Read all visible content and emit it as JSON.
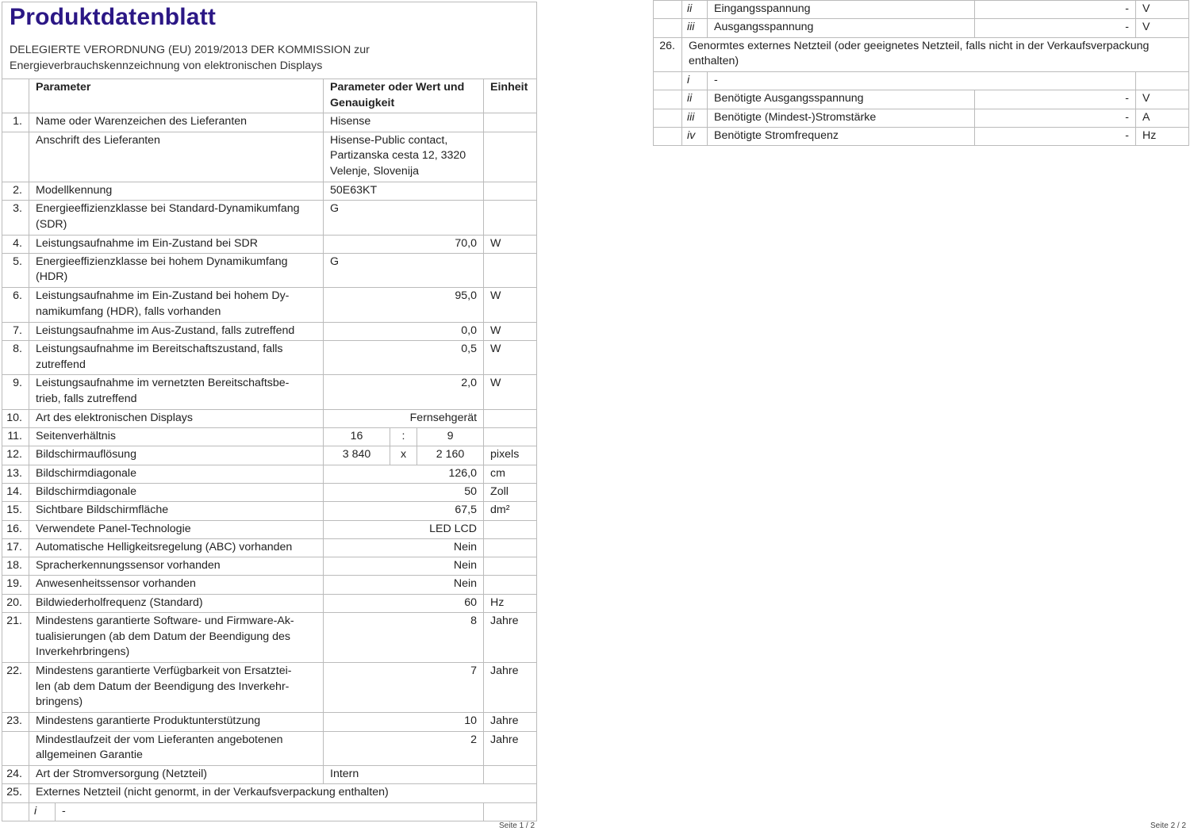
{
  "title": "Produktdatenblatt",
  "subtitle": "DELEGIERTE VERORDNUNG (EU) 2019/2013 DER KOMMISSION zur\nEnergieverbrauchskennzeichnung von elektronischen Displays",
  "title_color": "#2b1785",
  "left_table": {
    "header": {
      "param": "Parameter",
      "value": "Parameter oder Wert und\nGenauigkeit",
      "unit": "Einheit"
    },
    "rows": [
      {
        "num": "1.",
        "param": "Name oder Warenzeichen des Lieferanten",
        "value": "Hisense",
        "unit": ""
      },
      {
        "num": "",
        "param": "Anschrift des Lieferanten",
        "value": "Hisense-Public contact,\nPartizanska cesta 12, 3320\nVelenje, Slovenija",
        "unit": ""
      },
      {
        "num": "2.",
        "param": "Modellkennung",
        "value": "50E63KT",
        "unit": ""
      },
      {
        "num": "3.",
        "param": "Energieeffizienzklasse bei Standard-Dynamikumfang\n(SDR)",
        "value": "G",
        "unit": ""
      },
      {
        "num": "4.",
        "param": "Leistungsaufnahme im Ein-Zustand bei SDR",
        "value": "70,0",
        "unit": "W"
      },
      {
        "num": "5.",
        "param": "Energieeffizienzklasse bei hohem Dynamikumfang\n(HDR)",
        "value": "G",
        "unit": ""
      },
      {
        "num": "6.",
        "param": "Leistungsaufnahme im Ein-Zustand bei hohem Dy-\nnamikumfang (HDR), falls vorhanden",
        "value": "95,0",
        "unit": "W"
      },
      {
        "num": "7.",
        "param": "Leistungsaufnahme im Aus-Zustand, falls zutreffend",
        "value": "0,0",
        "unit": "W"
      },
      {
        "num": "8.",
        "param": "Leistungsaufnahme im Bereitschaftszustand, falls\nzutreffend",
        "value": "0,5",
        "unit": "W"
      },
      {
        "num": "9.",
        "param": "Leistungsaufnahme im vernetzten Bereitschaftsbe-\ntrieb, falls zutreffend",
        "value": "2,0",
        "unit": "W"
      },
      {
        "num": "10.",
        "param": "Art des elektronischen Displays",
        "value": "Fernsehgerät",
        "unit": ""
      },
      {
        "num": "11.",
        "param": "Seitenverhältnis",
        "value_parts": [
          "16",
          ":",
          "9"
        ],
        "unit": ""
      },
      {
        "num": "12.",
        "param": "Bildschirmauflösung",
        "value_parts": [
          "3 840",
          "x",
          "2 160"
        ],
        "unit": "pixels"
      },
      {
        "num": "13.",
        "param": "Bildschirmdiagonale",
        "value": "126,0",
        "unit": "cm"
      },
      {
        "num": "14.",
        "param": "Bildschirmdiagonale",
        "value": "50",
        "unit": "Zoll"
      },
      {
        "num": "15.",
        "param": "Sichtbare Bildschirmfläche",
        "value": "67,5",
        "unit": "dm²"
      },
      {
        "num": "16.",
        "param": "Verwendete Panel-Technologie",
        "value": "LED LCD",
        "unit": ""
      },
      {
        "num": "17.",
        "param": "Automatische Helligkeitsregelung (ABC) vorhanden",
        "value": "Nein",
        "unit": ""
      },
      {
        "num": "18.",
        "param": "Spracherkennungssensor vorhanden",
        "value": "Nein",
        "unit": ""
      },
      {
        "num": "19.",
        "param": "Anwesenheitssensor vorhanden",
        "value": "Nein",
        "unit": ""
      },
      {
        "num": "20.",
        "param": "Bildwiederholfrequenz (Standard)",
        "value": "60",
        "unit": "Hz"
      },
      {
        "num": "21.",
        "param": "Mindestens garantierte Software- und Firmware-Ak-\ntualisierungen (ab dem Datum der Beendigung des\nInverkehrbringens)",
        "value": "8",
        "unit": "Jahre"
      },
      {
        "num": "22.",
        "param": "Mindestens garantierte Verfügbarkeit von Ersatztei-\nlen (ab dem Datum der Beendigung des Inverkehr-\nbringens)",
        "value": "7",
        "unit": "Jahre"
      },
      {
        "num": "23.",
        "param": "Mindestens garantierte Produktunterstützung",
        "value": "10",
        "unit": "Jahre"
      },
      {
        "num": "",
        "param": "Mindestlaufzeit der vom Lieferanten angebotenen\nallgemeinen Garantie",
        "value": "2",
        "unit": "Jahre"
      },
      {
        "num": "24.",
        "param": "Art der Stromversorgung (Netzteil)",
        "value": "Intern",
        "unit": ""
      },
      {
        "num": "25.",
        "span": "Externes Netzteil (nicht genormt, in der Verkaufsverpackung enthalten)"
      },
      {
        "num": "",
        "roman": "i",
        "text": "-",
        "unit": ""
      }
    ]
  },
  "right_table": {
    "rows": [
      {
        "num": "",
        "roman": "ii",
        "label": "Eingangsspannung",
        "value": "-",
        "unit": "V"
      },
      {
        "num": "",
        "roman": "iii",
        "label": "Ausgangsspannung",
        "value": "-",
        "unit": "V"
      },
      {
        "num": "26.",
        "span": "Genormtes externes Netzteil (oder geeignetes Netzteil, falls nicht in der Verkaufsverpackung\nenthalten)"
      },
      {
        "num": "",
        "roman": "i",
        "text": "-",
        "unit": ""
      },
      {
        "num": "",
        "roman": "ii",
        "label": "Benötigte Ausgangsspannung",
        "value": "-",
        "unit": "V"
      },
      {
        "num": "",
        "roman": "iii",
        "label": "Benötigte (Mindest-)Stromstärke",
        "value": "-",
        "unit": "A"
      },
      {
        "num": "",
        "roman": "iv",
        "label": "Benötigte Stromfrequenz",
        "value": "-",
        "unit": "Hz"
      }
    ]
  },
  "footer": {
    "page1": "Seite 1 / 2",
    "page2": "Seite 2 / 2"
  }
}
